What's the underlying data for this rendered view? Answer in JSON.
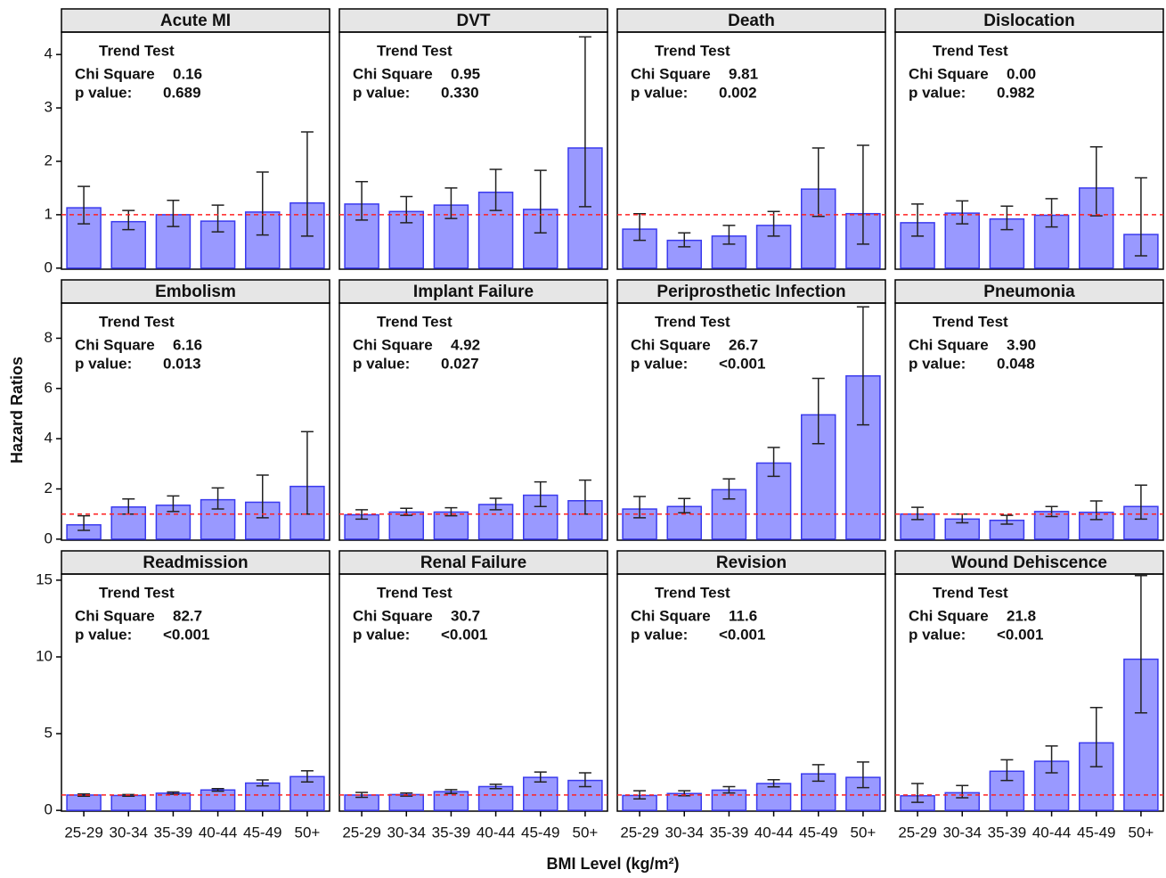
{
  "y_label": "Hazard Ratios",
  "x_label": "BMI Level (kg/m²)",
  "categories": [
    "25-29",
    "30-34",
    "35-39",
    "40-44",
    "45-49",
    "50+"
  ],
  "reference_line": 1,
  "reference_color": "#ff2020",
  "bar_color": "#9999ff",
  "bar_edge_color": "#3a3aee",
  "chart_data": [
    {
      "type": "bar",
      "title": "Acute MI",
      "ylim": [
        -0.02,
        4.42
      ],
      "yticks": [
        0,
        1,
        2,
        3,
        4
      ],
      "values": [
        1.13,
        0.87,
        1.0,
        0.88,
        1.05,
        1.22
      ],
      "lower": [
        0.83,
        0.72,
        0.78,
        0.68,
        0.62,
        0.6
      ],
      "upper": [
        1.53,
        1.08,
        1.27,
        1.18,
        1.8,
        2.55
      ],
      "annotation": {
        "heading": "Trend Test",
        "chi_label": "Chi Square",
        "chi": "0.16",
        "p_label": "p value:",
        "p": "0.689"
      }
    },
    {
      "type": "bar",
      "title": "DVT",
      "ylim": [
        -0.02,
        4.42
      ],
      "values": [
        1.2,
        1.06,
        1.18,
        1.42,
        1.1,
        2.25
      ],
      "lower": [
        0.9,
        0.85,
        0.93,
        1.08,
        0.66,
        1.15
      ],
      "upper": [
        1.62,
        1.34,
        1.5,
        1.85,
        1.83,
        4.33
      ],
      "annotation": {
        "heading": "Trend Test",
        "chi_label": "Chi Square",
        "chi": "0.95",
        "p_label": "p value:",
        "p": "0.330"
      }
    },
    {
      "type": "bar",
      "title": "Death",
      "ylim": [
        -0.02,
        4.42
      ],
      "values": [
        0.73,
        0.52,
        0.6,
        0.8,
        1.48,
        1.02
      ],
      "lower": [
        0.52,
        0.4,
        0.45,
        0.6,
        0.97,
        0.45
      ],
      "upper": [
        1.02,
        0.66,
        0.8,
        1.06,
        2.25,
        2.3
      ],
      "annotation": {
        "heading": "Trend Test",
        "chi_label": "Chi Square",
        "chi": "9.81",
        "p_label": "p value:",
        "p": "0.002"
      }
    },
    {
      "type": "bar",
      "title": "Dislocation",
      "ylim": [
        -0.02,
        4.42
      ],
      "values": [
        0.85,
        1.03,
        0.92,
        0.99,
        1.5,
        0.63
      ],
      "lower": [
        0.6,
        0.83,
        0.72,
        0.77,
        0.98,
        0.23
      ],
      "upper": [
        1.2,
        1.26,
        1.16,
        1.3,
        2.27,
        1.69
      ],
      "annotation": {
        "heading": "Trend Test",
        "chi_label": "Chi Square",
        "chi": "0.00",
        "p_label": "p value:",
        "p": "0.982"
      }
    },
    {
      "type": "bar",
      "title": "Embolism",
      "ylim": [
        -0.04,
        9.4
      ],
      "yticks": [
        0,
        2,
        4,
        6,
        8
      ],
      "values": [
        0.57,
        1.28,
        1.35,
        1.57,
        1.47,
        2.1
      ],
      "lower": [
        0.35,
        1.0,
        1.1,
        1.2,
        0.85,
        1.0
      ],
      "upper": [
        0.93,
        1.6,
        1.72,
        2.04,
        2.55,
        4.28
      ],
      "annotation": {
        "heading": "Trend Test",
        "chi_label": "Chi Square",
        "chi": "6.16",
        "p_label": "p value:",
        "p": "0.013"
      }
    },
    {
      "type": "bar",
      "title": "Implant Failure",
      "ylim": [
        -0.04,
        9.4
      ],
      "values": [
        0.97,
        1.08,
        1.08,
        1.38,
        1.75,
        1.53
      ],
      "lower": [
        0.8,
        0.95,
        0.93,
        1.17,
        1.3,
        1.0
      ],
      "upper": [
        1.17,
        1.23,
        1.25,
        1.63,
        2.28,
        2.35
      ],
      "annotation": {
        "heading": "Trend Test",
        "chi_label": "Chi Square",
        "chi": "4.92",
        "p_label": "p value:",
        "p": "0.027"
      }
    },
    {
      "type": "bar",
      "title": "Periprosthetic Infection",
      "ylim": [
        -0.04,
        9.4
      ],
      "values": [
        1.2,
        1.3,
        1.97,
        3.03,
        4.95,
        6.5
      ],
      "lower": [
        0.85,
        1.05,
        1.6,
        2.5,
        3.8,
        4.55
      ],
      "upper": [
        1.7,
        1.62,
        2.4,
        3.65,
        6.4,
        9.25
      ],
      "annotation": {
        "heading": "Trend Test",
        "chi_label": "Chi Square",
        "chi": "26.7",
        "p_label": "p value:",
        "p": "<0.001"
      }
    },
    {
      "type": "bar",
      "title": "Pneumonia",
      "ylim": [
        -0.04,
        9.4
      ],
      "values": [
        1.0,
        0.8,
        0.75,
        1.1,
        1.07,
        1.3
      ],
      "lower": [
        0.78,
        0.65,
        0.6,
        0.9,
        0.78,
        0.8
      ],
      "upper": [
        1.27,
        1.0,
        0.95,
        1.3,
        1.52,
        2.15
      ],
      "annotation": {
        "heading": "Trend Test",
        "chi_label": "Chi Square",
        "chi": "3.90",
        "p_label": "p value:",
        "p": "0.048"
      }
    },
    {
      "type": "bar",
      "title": "Readmission",
      "ylim": [
        -0.05,
        15.4
      ],
      "yticks": [
        0,
        5,
        10,
        15
      ],
      "values": [
        1.0,
        0.97,
        1.12,
        1.33,
        1.78,
        2.2
      ],
      "lower": [
        0.92,
        0.92,
        1.05,
        1.25,
        1.6,
        1.85
      ],
      "upper": [
        1.07,
        1.03,
        1.2,
        1.42,
        1.98,
        2.58
      ],
      "annotation": {
        "heading": "Trend Test",
        "chi_label": "Chi Square",
        "chi": "82.7",
        "p_label": "p value:",
        "p": "<0.001"
      }
    },
    {
      "type": "bar",
      "title": "Renal Failure",
      "ylim": [
        -0.05,
        15.4
      ],
      "values": [
        1.0,
        1.03,
        1.22,
        1.55,
        2.15,
        1.95
      ],
      "lower": [
        0.85,
        0.93,
        1.1,
        1.42,
        1.85,
        1.55
      ],
      "upper": [
        1.17,
        1.13,
        1.35,
        1.7,
        2.5,
        2.45
      ],
      "annotation": {
        "heading": "Trend Test",
        "chi_label": "Chi Square",
        "chi": "30.7",
        "p_label": "p value:",
        "p": "<0.001"
      }
    },
    {
      "type": "bar",
      "title": "Revision",
      "ylim": [
        -0.05,
        15.4
      ],
      "values": [
        0.97,
        1.1,
        1.32,
        1.75,
        2.38,
        2.15
      ],
      "lower": [
        0.75,
        0.95,
        1.13,
        1.53,
        1.9,
        1.48
      ],
      "upper": [
        1.28,
        1.28,
        1.55,
        2.0,
        2.98,
        3.15
      ],
      "annotation": {
        "heading": "Trend Test",
        "chi_label": "Chi Square",
        "chi": "11.6",
        "p_label": "p value:",
        "p": "<0.001"
      }
    },
    {
      "type": "bar",
      "title": "Wound Dehiscence",
      "ylim": [
        -0.05,
        15.4
      ],
      "values": [
        0.95,
        1.15,
        2.55,
        3.2,
        4.4,
        9.85
      ],
      "lower": [
        0.52,
        0.82,
        1.95,
        2.45,
        2.85,
        6.35
      ],
      "upper": [
        1.75,
        1.62,
        3.3,
        4.2,
        6.7,
        15.3
      ],
      "annotation": {
        "heading": "Trend Test",
        "chi_label": "Chi Square",
        "chi": "21.8",
        "p_label": "p value:",
        "p": "<0.001"
      }
    }
  ]
}
